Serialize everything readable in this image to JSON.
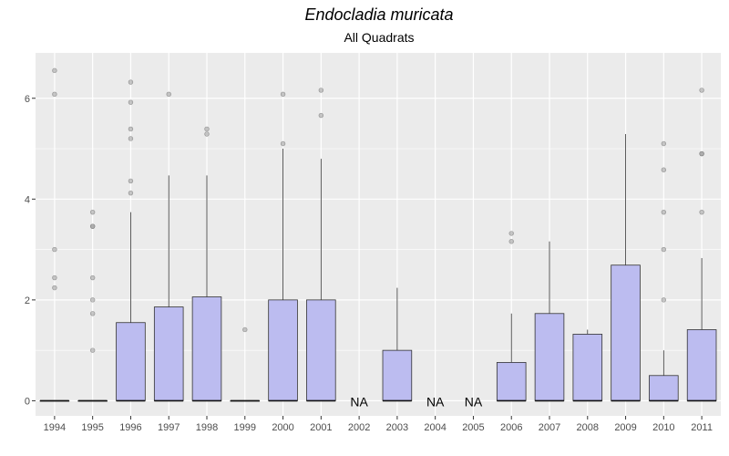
{
  "chart_data": {
    "type": "boxplot",
    "title": "Endocladia muricata",
    "subtitle": "All Quadrats",
    "xlabel": "",
    "ylabel": "",
    "ylim": [
      -0.3,
      6.9
    ],
    "y_ticks": [
      0,
      2,
      4,
      6
    ],
    "grid": true,
    "colors": {
      "box_fill": "#bcbcf0",
      "box_stroke": "#333333",
      "panel": "#ebebeb",
      "grid": "#ffffff",
      "outlier": "#9a9a9a"
    },
    "na_text": "NA",
    "categories": [
      "1994",
      "1995",
      "1996",
      "1997",
      "1998",
      "1999",
      "2000",
      "2001",
      "2002",
      "2003",
      "2004",
      "2005",
      "2006",
      "2007",
      "2008",
      "2009",
      "2010",
      "2011"
    ],
    "boxes": [
      {
        "year": "1994",
        "min": 0,
        "q1": 0,
        "median": 0,
        "q3": 0,
        "max": 0,
        "outliers": [
          2.24,
          2.44,
          3.0,
          6.08,
          6.55
        ]
      },
      {
        "year": "1995",
        "min": 0,
        "q1": 0,
        "median": 0,
        "q3": 0,
        "max": 0,
        "outliers": [
          1.0,
          1.73,
          2.0,
          2.44,
          3.46,
          3.46,
          3.74
        ]
      },
      {
        "year": "1996",
        "min": 0,
        "q1": 0,
        "median": 0,
        "q3": 1.55,
        "max": 3.74,
        "outliers": [
          4.12,
          4.36,
          5.2,
          5.39,
          5.92,
          6.32
        ]
      },
      {
        "year": "1997",
        "min": 0,
        "q1": 0,
        "median": 0,
        "q3": 1.86,
        "max": 4.47,
        "outliers": [
          6.08
        ]
      },
      {
        "year": "1998",
        "min": 0,
        "q1": 0,
        "median": 0,
        "q3": 2.06,
        "max": 4.47,
        "outliers": [
          5.29,
          5.39
        ]
      },
      {
        "year": "1999",
        "min": 0,
        "q1": 0,
        "median": 0,
        "q3": 0,
        "max": 0,
        "outliers": [
          1.41
        ]
      },
      {
        "year": "2000",
        "min": 0,
        "q1": 0,
        "median": 0,
        "q3": 2.0,
        "max": 5.0,
        "outliers": [
          5.1,
          6.08
        ]
      },
      {
        "year": "2001",
        "min": 0,
        "q1": 0,
        "median": 0,
        "q3": 2.0,
        "max": 4.8,
        "outliers": [
          5.66,
          6.16
        ]
      },
      {
        "year": "2002",
        "na": true
      },
      {
        "year": "2003",
        "min": 0,
        "q1": 0,
        "median": 0,
        "q3": 1.0,
        "max": 2.24,
        "outliers": []
      },
      {
        "year": "2004",
        "na": true
      },
      {
        "year": "2005",
        "na": true
      },
      {
        "year": "2006",
        "min": 0,
        "q1": 0,
        "median": 0,
        "q3": 0.76,
        "max": 1.73,
        "outliers": [
          3.16,
          3.32
        ]
      },
      {
        "year": "2007",
        "min": 0,
        "q1": 0,
        "median": 0,
        "q3": 1.73,
        "max": 3.16,
        "outliers": []
      },
      {
        "year": "2008",
        "min": 0,
        "q1": 0,
        "median": 0,
        "q3": 1.32,
        "max": 1.41,
        "outliers": []
      },
      {
        "year": "2009",
        "min": 0,
        "q1": 0,
        "median": 0,
        "q3": 2.69,
        "max": 5.29,
        "outliers": []
      },
      {
        "year": "2010",
        "min": 0,
        "q1": 0,
        "median": 0,
        "q3": 0.5,
        "max": 1.0,
        "outliers": [
          2.0,
          3.0,
          3.74,
          4.58,
          5.1
        ]
      },
      {
        "year": "2011",
        "min": 0,
        "q1": 0,
        "median": 0,
        "q3": 1.41,
        "max": 2.83,
        "outliers": [
          3.74,
          4.9,
          4.9,
          6.16
        ]
      }
    ]
  }
}
